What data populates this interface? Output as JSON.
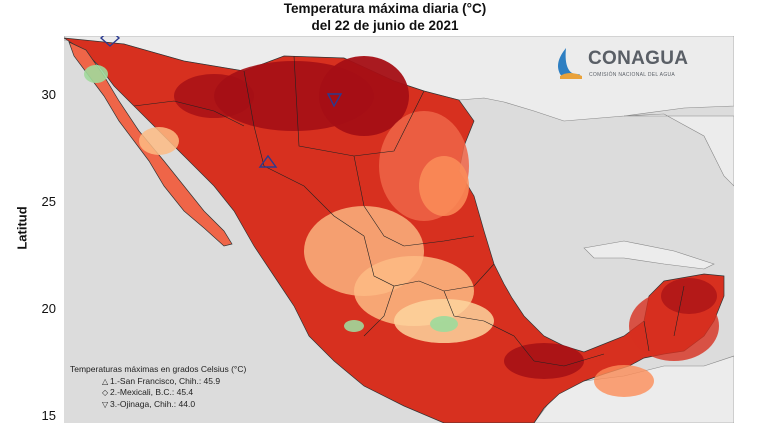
{
  "title": {
    "line1": "Temperatura máxima diaria (°C)",
    "line2": "del 22 de junio de 2021"
  },
  "y_axis": {
    "label": "Latitud",
    "ticks": [
      "30",
      "25",
      "20",
      "15"
    ]
  },
  "logo": {
    "name": "CONAGUA",
    "subtitle": "COMISIÓN NACIONAL DEL AGUA"
  },
  "legend": {
    "title": "Temperaturas máximas en grados Celsius (°C)",
    "items": [
      {
        "symbol": "triangle-up-icon",
        "text": "1.-San Francisco, Chih.: 45.9"
      },
      {
        "symbol": "diamond-icon",
        "text": "2.-Mexicali, B.C.: 45.4"
      },
      {
        "symbol": "triangle-down-icon",
        "text": "3.-Ojinaga, Chih.: 44.0"
      }
    ]
  },
  "colors": {
    "ocean": "#dcdcdc",
    "land_outside": "#ececec",
    "very_hot": "#a50f15",
    "hot": "#d7301f",
    "warm": "#ef6548",
    "mild": "#fc8d59",
    "moderate": "#fdbb84",
    "cool": "#fdd49e",
    "cold": "#a1d99b",
    "marker": "#2b3a8f"
  }
}
